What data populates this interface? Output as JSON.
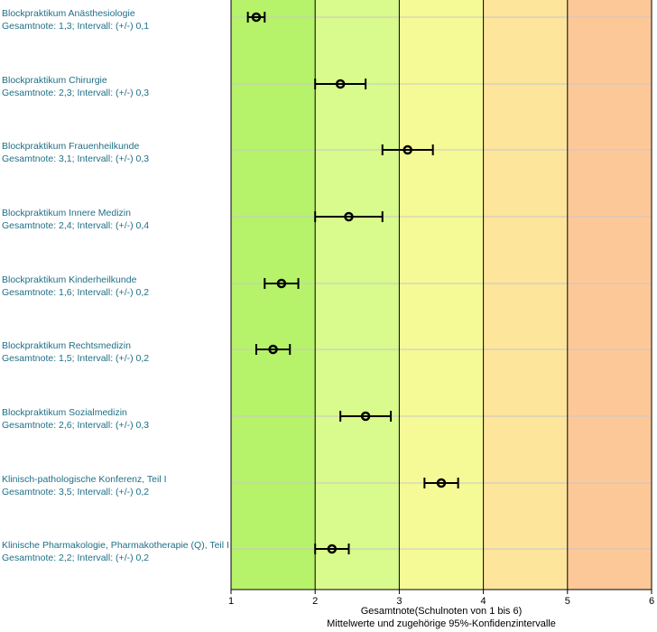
{
  "chart_data": {
    "type": "scatter",
    "x_range": [
      1,
      6
    ],
    "x_ticks": [
      "1",
      "2",
      "3",
      "4",
      "5",
      "6"
    ],
    "x_label_line1": "Gesamtnote(Schulnoten von 1 bis 6)",
    "x_label_line2": "Mittelwerte und zugehörige 95%-Konfidenzintervalle",
    "grid": "vertical lines at integer ticks, horizontal lines per row",
    "bands": [
      {
        "from": 1,
        "to": 2,
        "color": "#b6f26a"
      },
      {
        "from": 2,
        "to": 3,
        "color": "#d9fa8c"
      },
      {
        "from": 3,
        "to": 4,
        "color": "#f6fa96"
      },
      {
        "from": 4,
        "to": 5,
        "color": "#fde59c"
      },
      {
        "from": 5,
        "to": 6,
        "color": "#fdc898"
      }
    ],
    "rows": [
      {
        "name": "Blockpraktikum Anästhesiologie",
        "detail": "Gesamtnote: 1,3;  Intervall: (+/-) 0,1",
        "value": 1.3,
        "ci": 0.1
      },
      {
        "name": "Blockpraktikum Chirurgie",
        "detail": "Gesamtnote: 2,3;  Intervall: (+/-) 0,3",
        "value": 2.3,
        "ci": 0.3
      },
      {
        "name": "Blockpraktikum Frauenheilkunde",
        "detail": "Gesamtnote: 3,1;  Intervall: (+/-) 0,3",
        "value": 3.1,
        "ci": 0.3
      },
      {
        "name": "Blockpraktikum Innere Medizin",
        "detail": "Gesamtnote: 2,4;  Intervall: (+/-) 0,4",
        "value": 2.4,
        "ci": 0.4
      },
      {
        "name": "Blockpraktikum Kinderheilkunde",
        "detail": "Gesamtnote: 1,6;  Intervall: (+/-) 0,2",
        "value": 1.6,
        "ci": 0.2
      },
      {
        "name": "Blockpraktikum Rechtsmedizin",
        "detail": "Gesamtnote: 1,5;  Intervall: (+/-) 0,2",
        "value": 1.5,
        "ci": 0.2
      },
      {
        "name": "Blockpraktikum Sozialmedizin",
        "detail": "Gesamtnote: 2,6;  Intervall: (+/-) 0,3",
        "value": 2.6,
        "ci": 0.3
      },
      {
        "name": "Klinisch-pathologische Konferenz, Teil I",
        "detail": "Gesamtnote: 3,5;  Intervall: (+/-) 0,2",
        "value": 3.5,
        "ci": 0.2
      },
      {
        "name": "Klinische Pharmakologie, Pharmakotherapie (Q), Teil I",
        "detail": "Gesamtnote: 2,2;  Intervall: (+/-) 0,2",
        "value": 2.2,
        "ci": 0.2
      }
    ]
  }
}
